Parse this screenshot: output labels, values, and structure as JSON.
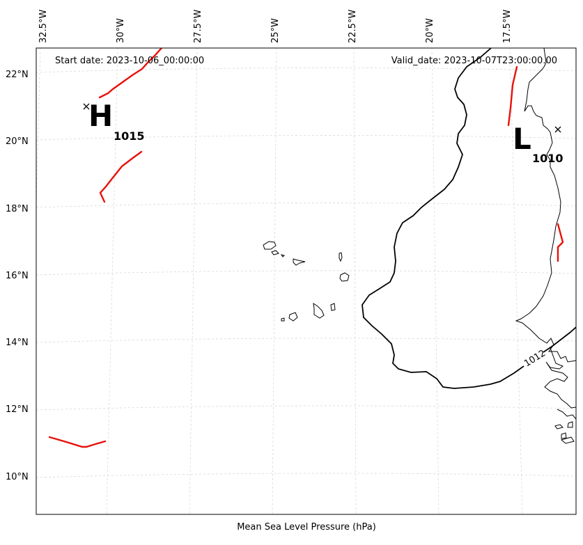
{
  "map": {
    "start_date": "Start date: 2023-10-06_00:00:00",
    "valid_date": "Valid_date: 2023-10-07T23:00:00.00",
    "caption": "Mean Sea Level Pressure (hPa)",
    "longitude_labels": [
      "32.5°W",
      "30°W",
      "27.5°W",
      "25°W",
      "22.5°W",
      "20°W",
      "17.5°W"
    ],
    "latitude_labels": [
      "22°N",
      "20°N",
      "18°N",
      "16°N",
      "14°N",
      "12°N",
      "10°N"
    ],
    "high": {
      "letter": "H",
      "value": "1015"
    },
    "low": {
      "letter": "L",
      "value": "1010"
    },
    "isobar_label": "1012",
    "colors": {
      "front": "#e8100a",
      "isobar": "#000000",
      "grid": "#d8d8d8"
    }
  }
}
